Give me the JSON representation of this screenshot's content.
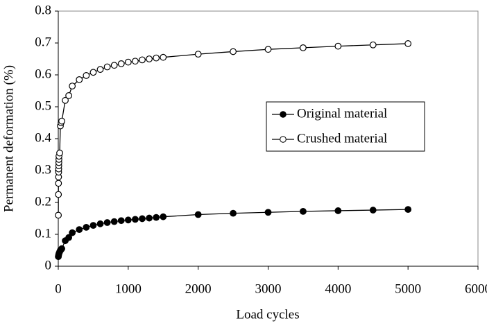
{
  "chart_data": {
    "type": "line",
    "xlabel": "Load cycles",
    "ylabel": "Permanent deformation (%)",
    "xlim": [
      0,
      6000
    ],
    "xticks": [
      0,
      1000,
      2000,
      3000,
      4000,
      5000,
      6000
    ],
    "ylim": [
      0,
      0.8
    ],
    "yticks": [
      0,
      0.1,
      0.2,
      0.3,
      0.4,
      0.5,
      0.6,
      0.7,
      0.8
    ],
    "legend": "right",
    "series": [
      {
        "name": "Original material",
        "color": "#000000",
        "marker": "filled",
        "x": [
          1,
          5,
          10,
          20,
          30,
          40,
          50,
          100,
          150,
          200,
          300,
          400,
          500,
          600,
          700,
          800,
          900,
          1000,
          1100,
          1200,
          1300,
          1400,
          1500,
          2000,
          2500,
          3000,
          3500,
          4000,
          4500,
          5000
        ],
        "values": [
          0.03,
          0.035,
          0.04,
          0.045,
          0.05,
          0.052,
          0.055,
          0.08,
          0.09,
          0.105,
          0.115,
          0.122,
          0.128,
          0.133,
          0.137,
          0.14,
          0.143,
          0.145,
          0.147,
          0.149,
          0.151,
          0.153,
          0.155,
          0.162,
          0.166,
          0.169,
          0.172,
          0.174,
          0.176,
          0.178
        ]
      },
      {
        "name": "Crushed material",
        "color": "#000000",
        "marker": "open",
        "x": [
          1,
          2,
          3,
          4,
          5,
          6,
          7,
          8,
          9,
          10,
          20,
          30,
          40,
          50,
          100,
          150,
          200,
          300,
          400,
          500,
          600,
          700,
          800,
          900,
          1000,
          1100,
          1200,
          1300,
          1400,
          1500,
          2000,
          2500,
          3000,
          3500,
          4000,
          4500,
          5000
        ],
        "values": [
          0.16,
          0.225,
          0.26,
          0.28,
          0.295,
          0.305,
          0.315,
          0.325,
          0.335,
          0.345,
          0.355,
          0.44,
          0.45,
          0.455,
          0.52,
          0.535,
          0.565,
          0.585,
          0.598,
          0.608,
          0.617,
          0.625,
          0.63,
          0.635,
          0.64,
          0.643,
          0.647,
          0.65,
          0.653,
          0.655,
          0.665,
          0.673,
          0.68,
          0.685,
          0.69,
          0.694,
          0.698
        ]
      }
    ]
  }
}
